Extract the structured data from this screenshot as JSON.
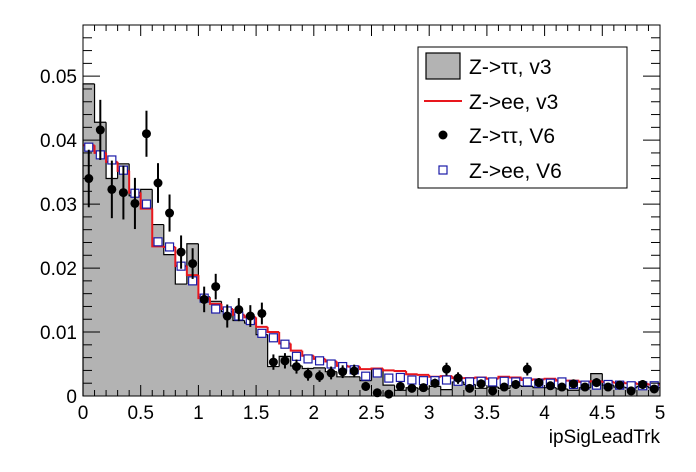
{
  "chart_data": {
    "type": "histogram",
    "xlabel": "ipSigLeadTrk",
    "ylabel": "",
    "xlim": [
      0,
      5
    ],
    "ylim": [
      0,
      0.058
    ],
    "bin_width": 0.1,
    "x_ticks": [
      "0",
      "0.5",
      "1",
      "1.5",
      "2",
      "2.5",
      "3",
      "3.5",
      "4",
      "4.5",
      "5"
    ],
    "x_tick_values": [
      0,
      0.5,
      1,
      1.5,
      2,
      2.5,
      3,
      3.5,
      4,
      4.5,
      5
    ],
    "y_ticks": [
      "0",
      "0.01",
      "0.02",
      "0.03",
      "0.04",
      "0.05"
    ],
    "y_tick_values": [
      0,
      0.01,
      0.02,
      0.03,
      0.04,
      0.05
    ],
    "legend_position": "top-right",
    "colors": {
      "ztautau_v3_fill": "#b3b3b3",
      "zee_v3_line": "#e8171d",
      "ztautau_v6_marker": "#000000",
      "zee_v6_marker": "#1a1aa8"
    },
    "series": [
      {
        "name": "Z->ττ, v3",
        "style": "filled-histogram",
        "values": [
          0.0488,
          0.0428,
          0.034,
          0.0363,
          0.0313,
          0.0323,
          0.0268,
          0.0221,
          0.0175,
          0.0238,
          0.0155,
          0.0148,
          0.0132,
          0.0118,
          0.0114,
          0.0096,
          0.0046,
          0.0062,
          0.0047,
          0.0043,
          0.0044,
          0.0038,
          0.003,
          0.003,
          0.0024,
          0.0042,
          0.0017,
          0.0009,
          0.0013,
          0.0011,
          0.0015,
          0.001,
          0.0022,
          0.0018,
          0.0012,
          0.0014,
          0.0012,
          0.0016,
          0.0015,
          0.0013,
          0.0013,
          0.0011,
          0.0009,
          0.0013,
          0.0035,
          0.0017,
          0.0014,
          0.0013,
          0.0015,
          0.0013
        ]
      },
      {
        "name": "Z->ee, v3",
        "style": "step-line",
        "values": [
          0.0392,
          0.038,
          0.0366,
          0.0352,
          0.0318,
          0.0293,
          0.0234,
          0.0233,
          0.0203,
          0.0189,
          0.0153,
          0.0144,
          0.0136,
          0.0127,
          0.0123,
          0.0108,
          0.01,
          0.0082,
          0.0071,
          0.0063,
          0.0058,
          0.0054,
          0.0047,
          0.0046,
          0.0042,
          0.0043,
          0.004,
          0.0039,
          0.0034,
          0.0033,
          0.003,
          0.0031,
          0.0028,
          0.0028,
          0.0029,
          0.0027,
          0.003,
          0.0029,
          0.0025,
          0.0026,
          0.0027,
          0.0024,
          0.0024,
          0.0022,
          0.0023,
          0.0022,
          0.0021,
          0.002,
          0.0019,
          0.0018
        ]
      },
      {
        "name": "Z->ττ, V6",
        "style": "points-with-errors",
        "values": [
          0.034,
          0.0416,
          0.0323,
          0.0318,
          0.0301,
          0.041,
          0.0333,
          0.0286,
          0.0225,
          0.0207,
          0.0151,
          0.0171,
          0.0125,
          0.0135,
          0.0125,
          0.0129,
          0.0053,
          0.0055,
          0.0046,
          0.0034,
          0.0031,
          0.0036,
          0.0038,
          0.0039,
          0.0015,
          0.0005,
          0.0003,
          0.0015,
          0.0012,
          0.0013,
          0.002,
          0.0042,
          0.0028,
          0.0012,
          0.0019,
          0.0008,
          0.0014,
          0.0018,
          0.0042,
          0.0021,
          0.0016,
          0.0014,
          0.0019,
          0.0014,
          0.0021,
          0.0014,
          0.0017,
          0.0008,
          0.0018,
          0.0011
        ],
        "errors": [
          0.0045,
          0.0047,
          0.0045,
          0.0042,
          0.004,
          0.0036,
          0.0031,
          0.0029,
          0.0026,
          0.0024,
          0.002,
          0.002,
          0.0018,
          0.0018,
          0.0017,
          0.0017,
          0.0012,
          0.0012,
          0.0011,
          0.001,
          0.0009,
          0.001,
          0.001,
          0.001,
          0.0007,
          0.0004,
          0.0003,
          0.0007,
          0.0006,
          0.0006,
          0.0007,
          0.001,
          0.0009,
          0.0006,
          0.0007,
          0.0005,
          0.0006,
          0.0007,
          0.001,
          0.0007,
          0.0006,
          0.0006,
          0.0007,
          0.0006,
          0.0007,
          0.0006,
          0.0007,
          0.0004,
          0.0007,
          0.0005
        ]
      },
      {
        "name": "Z->ee, V6",
        "style": "open-squares",
        "values": [
          0.0389,
          0.0377,
          0.0369,
          0.0353,
          0.0317,
          0.03,
          0.0241,
          0.0233,
          0.0203,
          0.018,
          0.0153,
          0.0136,
          0.0133,
          0.0125,
          0.0118,
          0.0098,
          0.0091,
          0.0081,
          0.0062,
          0.0058,
          0.0055,
          0.005,
          0.0046,
          0.0041,
          0.0031,
          0.0036,
          0.0028,
          0.0029,
          0.0025,
          0.0024,
          0.0024,
          0.0025,
          0.0023,
          0.0022,
          0.0023,
          0.0022,
          0.0023,
          0.0022,
          0.0022,
          0.002,
          0.002,
          0.0022,
          0.0018,
          0.0017,
          0.0017,
          0.0018,
          0.0017,
          0.0016,
          0.0016,
          0.0016
        ]
      }
    ]
  }
}
